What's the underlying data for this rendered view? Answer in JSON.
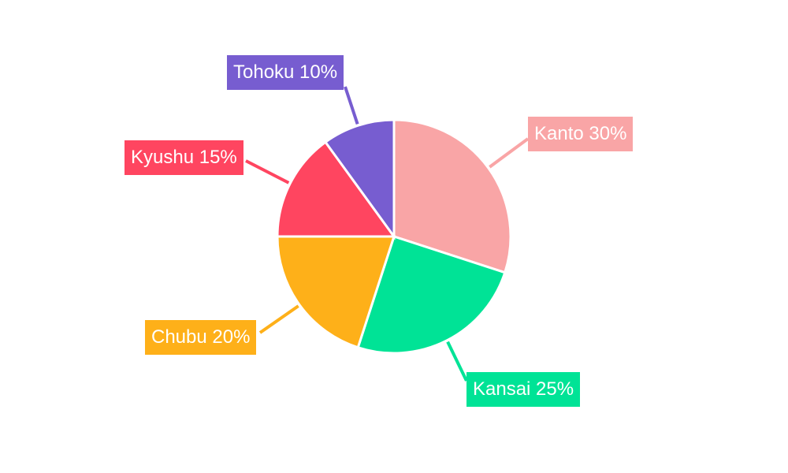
{
  "chart_data": {
    "type": "pie",
    "title": "",
    "start_angle": "top, clockwise",
    "slices": [
      {
        "label": "Kanto",
        "value": 30,
        "display": "Kanto 30%",
        "color": "#F9A5A6"
      },
      {
        "label": "Kansai",
        "value": 25,
        "display": "Kansai 25%",
        "color": "#00E396"
      },
      {
        "label": "Chubu",
        "value": 20,
        "display": "Chubu 20%",
        "color": "#FEB019"
      },
      {
        "label": "Kyushu",
        "value": 15,
        "display": "Kyushu 15%",
        "color": "#FF4560"
      },
      {
        "label": "Tohoku",
        "value": 10,
        "display": "Tohoku 10%",
        "color": "#775DD0"
      }
    ],
    "legend": "none; labels outside with leader lines"
  }
}
